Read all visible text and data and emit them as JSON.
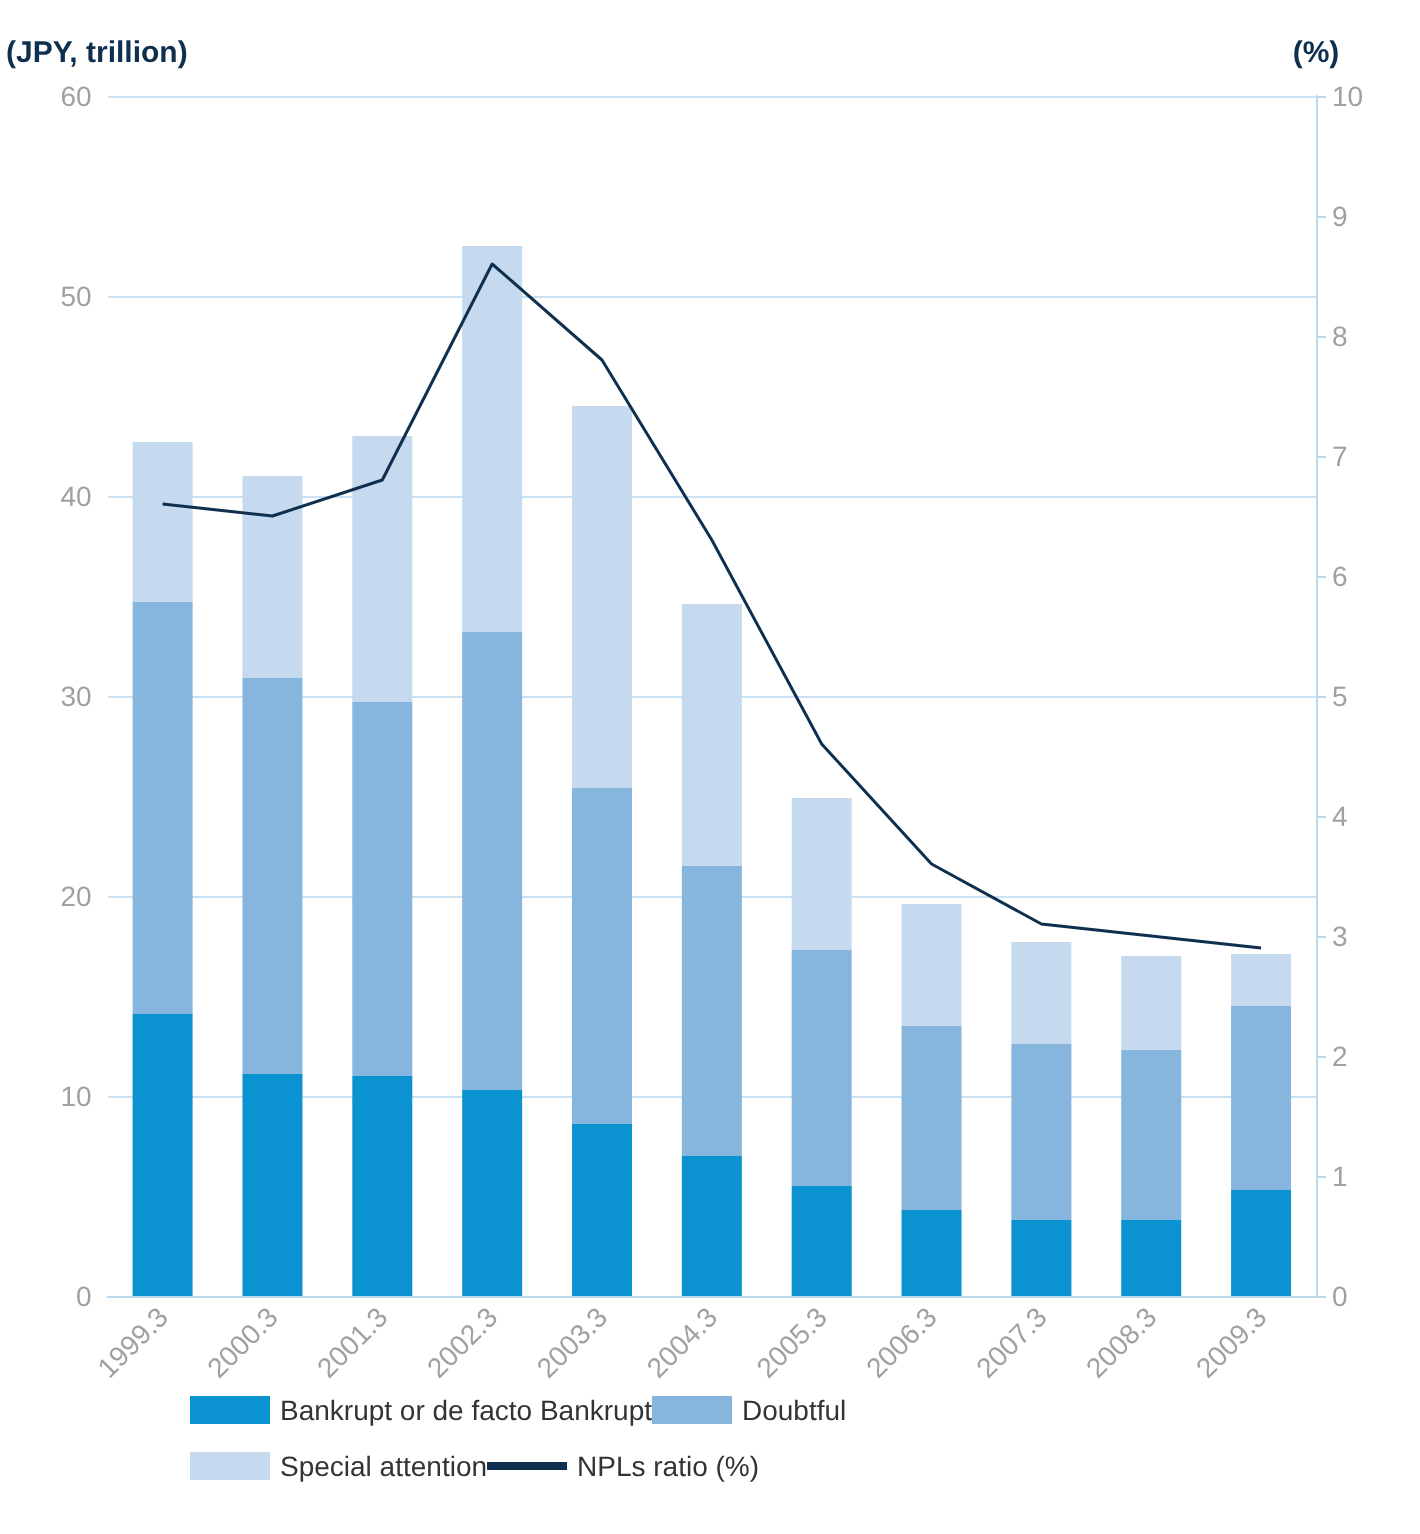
{
  "chart_data": {
    "type": "bar",
    "stacked": true,
    "ylabel": "(JPY, trillion)",
    "y2label": "(%)",
    "categories": [
      "1999.3",
      "2000.3",
      "2001.3",
      "2002.3",
      "2003.3",
      "2004.3",
      "2005.3",
      "2006.3",
      "2007.3",
      "2008.3",
      "2009.3"
    ],
    "series": [
      {
        "name": "Bankrupt or de facto Bankrupt",
        "color": "#0a93d0",
        "values": [
          14.1,
          11.1,
          11.0,
          10.3,
          8.6,
          7.0,
          5.5,
          4.3,
          3.8,
          3.8,
          5.3
        ]
      },
      {
        "name": "Doubtful",
        "color": "#86b5dd",
        "values": [
          20.6,
          19.8,
          18.7,
          22.9,
          16.8,
          14.5,
          11.8,
          9.2,
          8.8,
          8.5,
          9.2
        ]
      },
      {
        "name": "Special attention",
        "color": "#c5d9ef",
        "values": [
          8.0,
          10.1,
          13.3,
          19.3,
          19.1,
          13.1,
          7.6,
          6.1,
          5.1,
          4.7,
          2.6
        ]
      },
      {
        "name": "NPLs ratio (%)",
        "type": "line",
        "axis": "y2",
        "color": "#0f2f4f",
        "values": [
          6.6,
          6.5,
          6.8,
          8.6,
          7.8,
          6.3,
          4.6,
          3.6,
          3.1,
          3.0,
          2.9
        ]
      }
    ],
    "ylim": [
      0,
      60
    ],
    "yticks": [
      0,
      10,
      20,
      30,
      40,
      50,
      60
    ],
    "y2lim": [
      0,
      10
    ],
    "y2ticks": [
      0,
      1,
      2,
      3,
      4,
      5,
      6,
      7,
      8,
      9,
      10
    ],
    "grid": "y",
    "legend": "bottom",
    "marker": "none"
  }
}
